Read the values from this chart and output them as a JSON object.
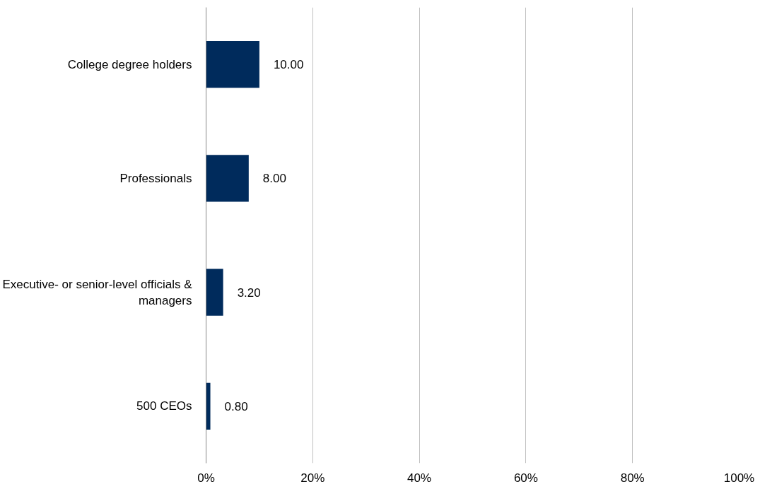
{
  "chart_data": {
    "type": "bar",
    "orientation": "horizontal",
    "categories": [
      "College degree holders",
      "Professionals",
      "Executive- or senior-level officials &\nmanagers",
      "500 CEOs"
    ],
    "values": [
      10,
      8,
      3.2,
      0.8
    ],
    "color": "#002b5c",
    "value_labels": [
      "10.00",
      "8.00",
      "3.20",
      "0.80"
    ],
    "xlim": [
      0,
      100
    ],
    "xticks": [
      {
        "value": 0,
        "label": "0%"
      },
      {
        "value": 20,
        "label": "20%"
      },
      {
        "value": 40,
        "label": "40%"
      },
      {
        "value": 60,
        "label": "60%"
      },
      {
        "value": 80,
        "label": "80%"
      },
      {
        "value": 100,
        "label": "100%"
      }
    ],
    "grid": "x"
  }
}
